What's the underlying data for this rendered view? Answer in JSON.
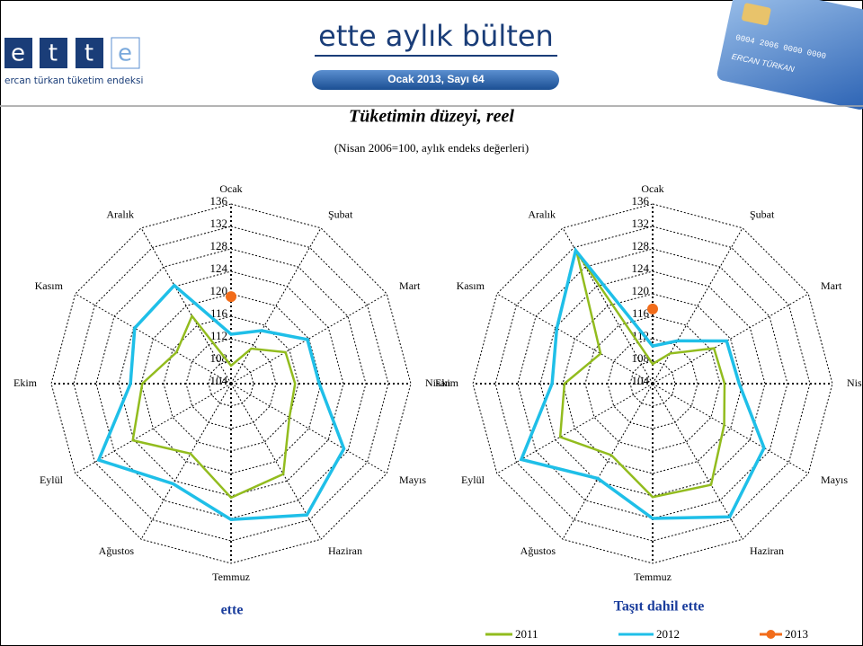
{
  "header": {
    "logo_letters": [
      "e",
      "t",
      "t",
      "e"
    ],
    "logo_caption": "ercan türkan tüketim endeksi",
    "title": "ette aylık bülten",
    "issue": "Ocak 2013, Sayı 64",
    "card_number": "0004 2006 0000 0000",
    "card_name": "ERCAN TÜRKAN"
  },
  "figure": {
    "title": "Tüketimin düzeyi, reel",
    "subtitle": "(Nisan 2006=100, aylık endeks değerleri)"
  },
  "chart_data": [
    {
      "type": "radar",
      "title": "ette",
      "categories": [
        "Ocak",
        "Şubat",
        "Mart",
        "Nisan",
        "Mayıs",
        "Haziran",
        "Temmuz",
        "Ağustos",
        "Eylül",
        "Ekim",
        "Kasım",
        "Aralık"
      ],
      "ylim": [
        104,
        136
      ],
      "yticks": [
        104,
        108,
        112,
        116,
        120,
        124,
        128,
        132,
        136
      ],
      "grid": true,
      "series": [
        {
          "name": "2011",
          "color": "#92bc1e",
          "values": [
            107.2,
            111.2,
            115.2,
            115.4,
            116,
            122.6,
            124.3,
            118.4,
            124.2,
            119.8,
            115.2,
            117.9
          ]
        },
        {
          "name": "2012",
          "color": "#1fbfe8",
          "values": [
            112.8,
            114.9,
            119.7,
            119.7,
            127.2,
            131,
            128.2,
            124.6,
            131.2,
            121.9,
            123.8,
            124.2
          ]
        },
        {
          "name": "2013",
          "color": "#f26c1a",
          "values": [
            119.5,
            null,
            null,
            null,
            null,
            null,
            null,
            null,
            null,
            null,
            null,
            null
          ]
        }
      ]
    },
    {
      "type": "radar",
      "title": "Taşıt dahil ette",
      "categories": [
        "Ocak",
        "Şubat",
        "Mart",
        "Nisan",
        "Mayıs",
        "Haziran",
        "Temmuz",
        "Ağustos",
        "Eylül",
        "Ekim",
        "Kasım",
        "Aralık"
      ],
      "ylim": [
        104,
        136
      ],
      "yticks": [
        104,
        108,
        112,
        116,
        120,
        124,
        128,
        132,
        136
      ],
      "grid": true,
      "series": [
        {
          "name": "2011",
          "color": "#92bc1e",
          "values": [
            107.5,
            110.2,
            116.6,
            116.8,
            118.7,
            124.8,
            124.2,
            118.7,
            123,
            119.7,
            114.7,
            131
          ]
        },
        {
          "name": "2012",
          "color": "#1fbfe8",
          "values": [
            110.7,
            112.8,
            119.2,
            119.4,
            126.9,
            131.4,
            128,
            123.5,
            131,
            121.9,
            123.7,
            131.4
          ]
        },
        {
          "name": "2013",
          "color": "#f26c1a",
          "values": [
            117.3,
            null,
            null,
            null,
            null,
            null,
            null,
            null,
            null,
            null,
            null,
            null
          ]
        }
      ]
    }
  ]
}
